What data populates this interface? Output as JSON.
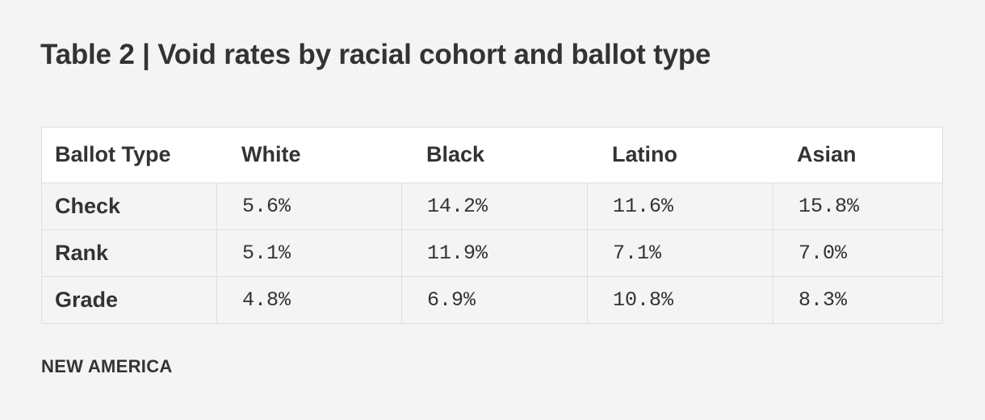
{
  "title": "Table 2 | Void rates by racial cohort and ballot type",
  "footer": "NEW AMERICA",
  "chart_data": {
    "type": "table",
    "title": "Table 2 | Void rates by racial cohort and ballot type",
    "columns": [
      "Ballot Type",
      "White",
      "Black",
      "Latino",
      "Asian"
    ],
    "rows": [
      {
        "label": "Check",
        "values": [
          "5.6%",
          "14.2%",
          "11.6%",
          "15.8%"
        ]
      },
      {
        "label": "Rank",
        "values": [
          "5.1%",
          "11.9%",
          "7.1%",
          "7.0%"
        ]
      },
      {
        "label": "Grade",
        "values": [
          "4.8%",
          "6.9%",
          "10.8%",
          "8.3%"
        ]
      }
    ]
  }
}
